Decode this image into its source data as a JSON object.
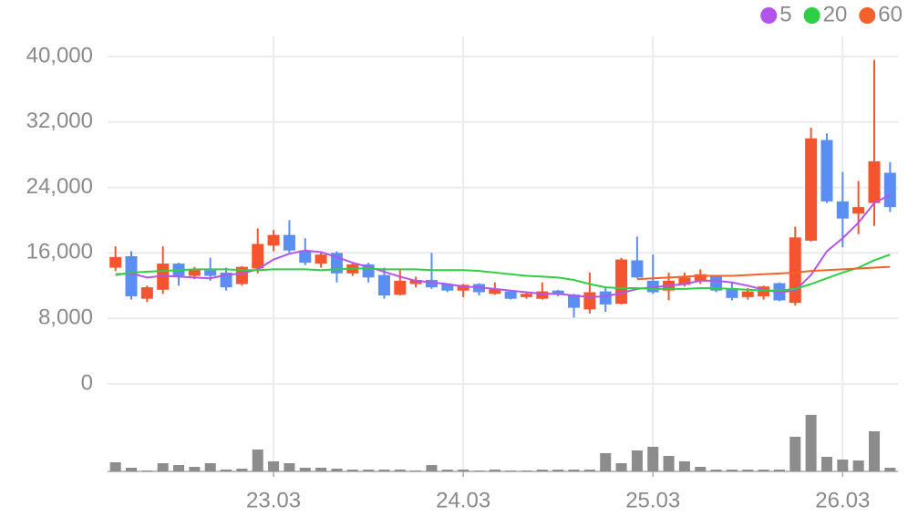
{
  "chart_data": {
    "type": "candlestick",
    "categories": [
      null,
      null,
      null,
      null,
      null,
      null,
      null,
      null,
      null,
      null,
      "23.03",
      null,
      null,
      null,
      null,
      null,
      null,
      null,
      null,
      null,
      null,
      null,
      "24.03",
      null,
      null,
      null,
      null,
      null,
      null,
      null,
      null,
      null,
      null,
      null,
      "25.03",
      null,
      null,
      null,
      null,
      null,
      null,
      null,
      null,
      null,
      null,
      null,
      "26.03",
      null,
      null,
      null
    ],
    "open": [
      14200,
      15600,
      10400,
      11500,
      14700,
      13200,
      13900,
      13600,
      12200,
      14100,
      16900,
      18200,
      16300,
      14700,
      16000,
      13500,
      14600,
      13300,
      10900,
      12200,
      12700,
      12200,
      11400,
      12200,
      11000,
      11300,
      10600,
      10400,
      11400,
      10900,
      9100,
      11300,
      9800,
      15100,
      12600,
      11400,
      12100,
      12600,
      13200,
      11700,
      10600,
      10700,
      12300,
      9900,
      17500,
      29800,
      22300,
      20800,
      22100,
      25800
    ],
    "high": [
      16800,
      16200,
      12000,
      16800,
      14800,
      14300,
      15400,
      14200,
      14400,
      19000,
      18800,
      20000,
      17800,
      16200,
      16200,
      14800,
      14800,
      14200,
      13900,
      13100,
      16000,
      12200,
      12200,
      12300,
      12400,
      11500,
      11200,
      12400,
      11500,
      11000,
      13600,
      11900,
      15400,
      18000,
      15800,
      13600,
      13600,
      14000,
      13200,
      12400,
      11700,
      12000,
      12400,
      19200,
      31300,
      30600,
      25900,
      24800,
      39600,
      27100
    ],
    "low": [
      13800,
      10300,
      10000,
      11000,
      12000,
      12800,
      12600,
      11400,
      12000,
      13500,
      16200,
      16000,
      14500,
      14200,
      12400,
      13200,
      12400,
      10400,
      10800,
      11800,
      11600,
      11200,
      10600,
      10800,
      10900,
      10300,
      10400,
      10300,
      10700,
      8100,
      8600,
      8800,
      9700,
      12900,
      11000,
      10200,
      11900,
      12200,
      11200,
      10200,
      10300,
      10300,
      10100,
      9600,
      17400,
      22100,
      16700,
      18300,
      19300,
      21000
    ],
    "close": [
      15500,
      10700,
      11800,
      14700,
      13200,
      14000,
      13200,
      11800,
      14300,
      17100,
      18200,
      16300,
      14800,
      15800,
      13500,
      14600,
      13000,
      10800,
      12600,
      12700,
      11800,
      11400,
      12100,
      11200,
      11600,
      10400,
      11000,
      11300,
      10900,
      9300,
      11200,
      9700,
      15200,
      13000,
      11200,
      12600,
      13000,
      13400,
      11400,
      10500,
      11300,
      11900,
      10200,
      17900,
      30000,
      22300,
      20200,
      21600,
      27200,
      21600
    ],
    "volume": [
      10,
      4,
      1,
      9,
      7,
      5,
      9,
      2,
      3,
      24,
      11,
      9,
      4,
      4,
      3,
      2,
      2,
      2,
      2,
      1,
      7,
      2,
      2,
      1,
      2,
      1,
      1,
      2,
      2,
      2,
      2,
      20,
      9,
      23,
      27,
      17,
      11,
      5,
      2,
      2,
      2,
      2,
      2,
      38,
      62,
      16,
      13,
      12,
      44,
      4
    ],
    "up_color": "#f4552e",
    "down_color": "#5a8ef2",
    "volume_color": "#8c8c8c",
    "series": [
      {
        "name": "5",
        "color": "#b355ec",
        "values": [
          13400,
          13500,
          13000,
          13200,
          13100,
          13000,
          12900,
          13300,
          13500,
          14000,
          15200,
          15900,
          16300,
          16100,
          15500,
          14800,
          14300,
          13700,
          13100,
          12600,
          12400,
          12200,
          11900,
          11800,
          11600,
          11400,
          11200,
          11000,
          11000,
          10800,
          10600,
          10700,
          11100,
          11600,
          11800,
          12000,
          12200,
          12600,
          12600,
          12400,
          12000,
          11500,
          11200,
          11400,
          13300,
          16200,
          17800,
          19700,
          22100,
          23100
        ]
      },
      {
        "name": "20",
        "color": "#2fcf45",
        "values": [
          13300,
          13600,
          13700,
          13800,
          13900,
          14000,
          14000,
          14000,
          13900,
          13900,
          14000,
          14000,
          14000,
          13900,
          14000,
          14100,
          14100,
          14000,
          14000,
          14000,
          13900,
          13900,
          13900,
          13800,
          13600,
          13400,
          13200,
          13100,
          13000,
          12700,
          12200,
          11800,
          11700,
          11700,
          11600,
          11600,
          11600,
          11700,
          11700,
          11600,
          11500,
          11400,
          11400,
          11600,
          12200,
          12900,
          13600,
          14200,
          15100,
          15800
        ]
      },
      {
        "name": "60",
        "color": "#f2622a",
        "values": [
          null,
          null,
          null,
          null,
          null,
          null,
          null,
          null,
          null,
          null,
          null,
          null,
          null,
          null,
          null,
          null,
          null,
          null,
          null,
          null,
          null,
          null,
          null,
          null,
          null,
          null,
          null,
          null,
          null,
          null,
          null,
          null,
          null,
          12800,
          12900,
          13000,
          13100,
          13200,
          13200,
          13200,
          13300,
          13400,
          13500,
          13600,
          13800,
          13900,
          14000,
          14100,
          14200,
          14300
        ]
      }
    ],
    "ylim": [
      0,
      40000
    ],
    "yticks": [
      0,
      {
        "value": 8000,
        "label": "8,000"
      },
      {
        "value": 16000,
        "label": "16,000"
      },
      {
        "value": 24000,
        "label": "24,000"
      },
      {
        "value": 32000,
        "label": "32,000"
      },
      {
        "value": 40000,
        "label": "40,000"
      }
    ],
    "grid": true
  }
}
